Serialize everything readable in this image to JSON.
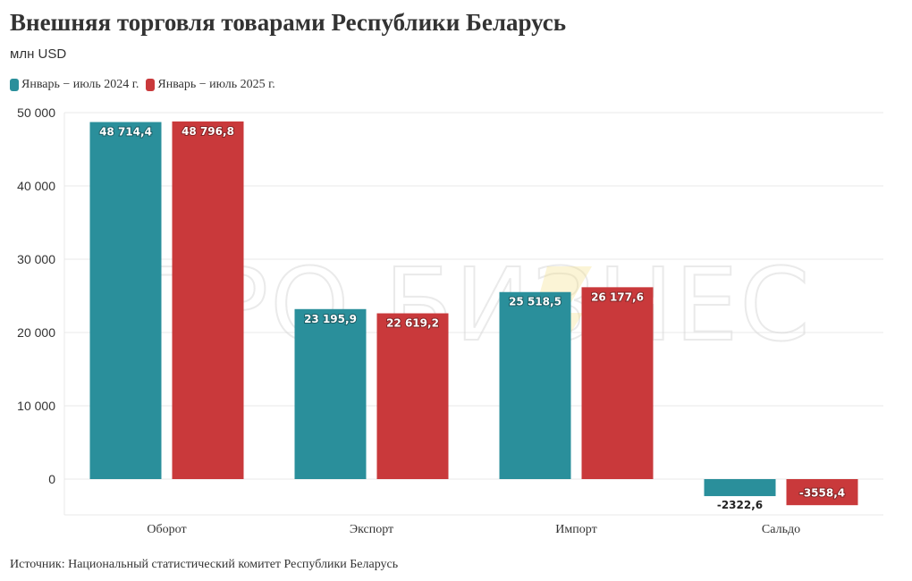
{
  "title": "Внешняя торговля товарами Республики Беларусь",
  "subtitle": "млн USD",
  "source": "Источник: Национальный статистический комитет Республики Беларусь",
  "watermark": "ПРО БИЗНЕС",
  "colors": {
    "series_2024": "#2a8f9b",
    "series_2025": "#c9393b"
  },
  "chart_data": {
    "type": "bar",
    "categories": [
      "Оборот",
      "Экспорт",
      "Импорт",
      "Сальдо"
    ],
    "series": [
      {
        "name": "Январь − июль 2024 г.",
        "values": [
          48714.4,
          23195.9,
          25518.5,
          -2322.6
        ],
        "labels": [
          "48 714,4",
          "23 195,9",
          "25 518,5",
          "-2322,6"
        ]
      },
      {
        "name": "Январь − июль 2025 г.",
        "values": [
          48796.8,
          22619.2,
          26177.6,
          -3558.4
        ],
        "labels": [
          "48 796,8",
          "22 619,2",
          "26 177,6",
          "-3558,4"
        ]
      }
    ],
    "yticks": [
      {
        "value": 0,
        "label": "0"
      },
      {
        "value": 10000,
        "label": "10 000"
      },
      {
        "value": 20000,
        "label": "20 000"
      },
      {
        "value": 30000,
        "label": "30 000"
      },
      {
        "value": 40000,
        "label": "40 000"
      },
      {
        "value": 50000,
        "label": "50 000"
      }
    ],
    "ylim": [
      -5000,
      50000
    ],
    "grid": true,
    "legend_position": "top-left"
  }
}
